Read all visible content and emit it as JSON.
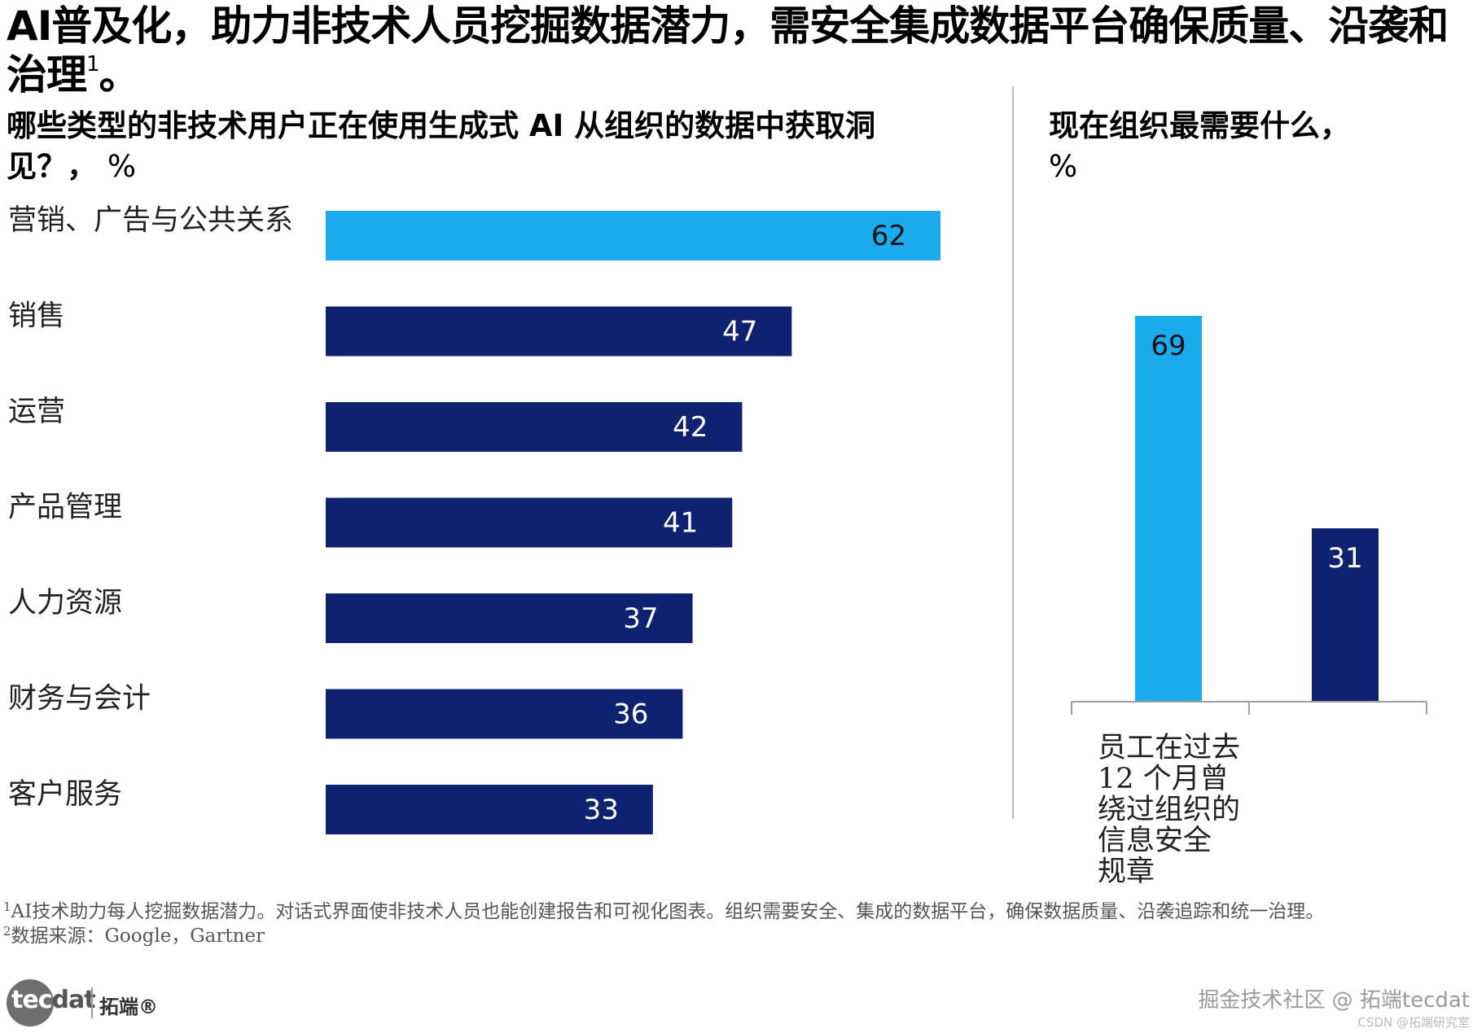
{
  "title": {
    "text": "AI普及化，助力非技术人员挖掘数据潜力，需安全集成数据平台确保质量、沿袭和治理",
    "footnote_ref": "1",
    "end": "。"
  },
  "left_panel": {
    "subtitle": "哪些类型的非技术用户正在使用生成式 AI 从组织的数据中获取洞见？，",
    "unit": "%"
  },
  "right_panel": {
    "subtitle": "现在组织最需要什么，",
    "unit": "%"
  },
  "chart_data": [
    {
      "type": "bar",
      "orientation": "horizontal",
      "title": "哪些类型的非技术用户正在使用生成式 AI 从组织的数据中获取洞见？，%",
      "categories": [
        "营销、广告与公共关系",
        "销售",
        "运营",
        "产品管理",
        "人力资源",
        "财务与会计",
        "客户服务"
      ],
      "values": [
        62,
        47,
        42,
        41,
        37,
        36,
        33
      ],
      "highlight_index": 0,
      "colors": {
        "highlight": "#1AABEC",
        "default": "#0F2272"
      },
      "xlim": [
        0,
        62
      ],
      "grid": false,
      "legend": "none"
    },
    {
      "type": "bar",
      "orientation": "vertical",
      "title": "现在组织最需要什么，%",
      "categories": [
        "员工在过去 12 个月曾绕过组织的信息安全规章",
        ""
      ],
      "values": [
        69,
        31
      ],
      "colors": [
        "#1AABEC",
        "#0F2272"
      ],
      "ylim": [
        0,
        69
      ],
      "grid": false,
      "legend": "none"
    }
  ],
  "column_category_label": "员工在过去 12 个月曾绕过组织的信息安全规章",
  "footnotes": [
    {
      "ref": "1",
      "text": "AI技术助力每人挖掘数据潜力。对话式界面使非技术人员也能创建报告和可视化图表。组织需要安全、集成的数据平台，确保数据质量、沿袭追踪和统一治理。"
    },
    {
      "ref": "2",
      "text": "数据来源：Google，Gartner"
    }
  ],
  "logo": {
    "text_a": "tec",
    "text_b": "dat",
    "cn": "拓端®"
  },
  "watermark": {
    "line1": "掘金技术社区 @ 拓端tecdat",
    "line2": "CSDN @拓端研究室"
  }
}
